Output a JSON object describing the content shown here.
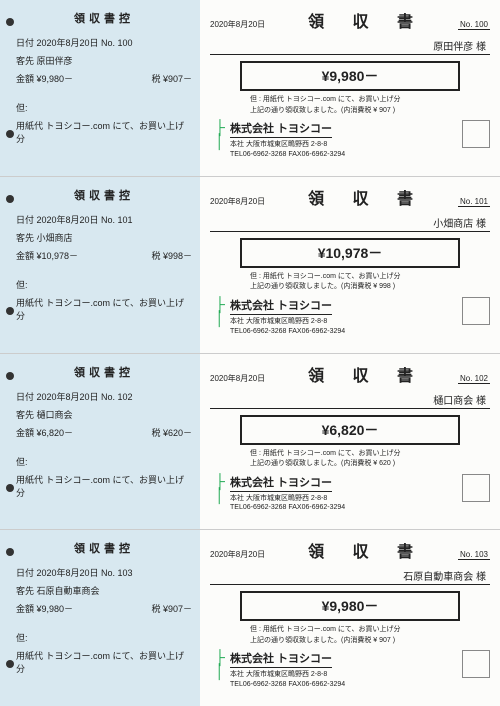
{
  "stub_title": "領収書控",
  "receipt_title": "領 収 書",
  "company": {
    "name": "株式会社 トヨシコー",
    "addr1": "本社 大阪市城東区鴫野西 2-8-8",
    "addr2": "TEL06-6962-3268 FAX06-6962-3294"
  },
  "note_item": "用紙代  トヨシコー.com にて、お買い上げ分",
  "labels": {
    "date": "日付",
    "payee": "客先",
    "amount": "金額",
    "tax": "税",
    "note": "但:",
    "no": "No.",
    "sama": "様",
    "note2_prefix": "上記の通り領収致しました。(内消費税 ¥ ",
    "note2_suffix": " )",
    "rnote_prefix": "但 : 用紙代  トヨシコー.com にて、お買い上げ分"
  },
  "mark": "⌐│┘",
  "receipts": [
    {
      "date": "2020年8月20日",
      "no": "100",
      "payee": "原田伴彦",
      "amount": "¥9,980－",
      "tax": "¥907－",
      "tax_num": "907"
    },
    {
      "date": "2020年8月20日",
      "no": "101",
      "payee": "小畑商店",
      "amount": "¥10,978－",
      "tax": "¥998－",
      "tax_num": "998"
    },
    {
      "date": "2020年8月20日",
      "no": "102",
      "payee": "樋口商会",
      "amount": "¥6,820－",
      "tax": "¥620－",
      "tax_num": "620"
    },
    {
      "date": "2020年8月20日",
      "no": "103",
      "payee": "石原自動車商会",
      "amount": "¥9,980－",
      "tax": "¥907－",
      "tax_num": "907"
    }
  ]
}
